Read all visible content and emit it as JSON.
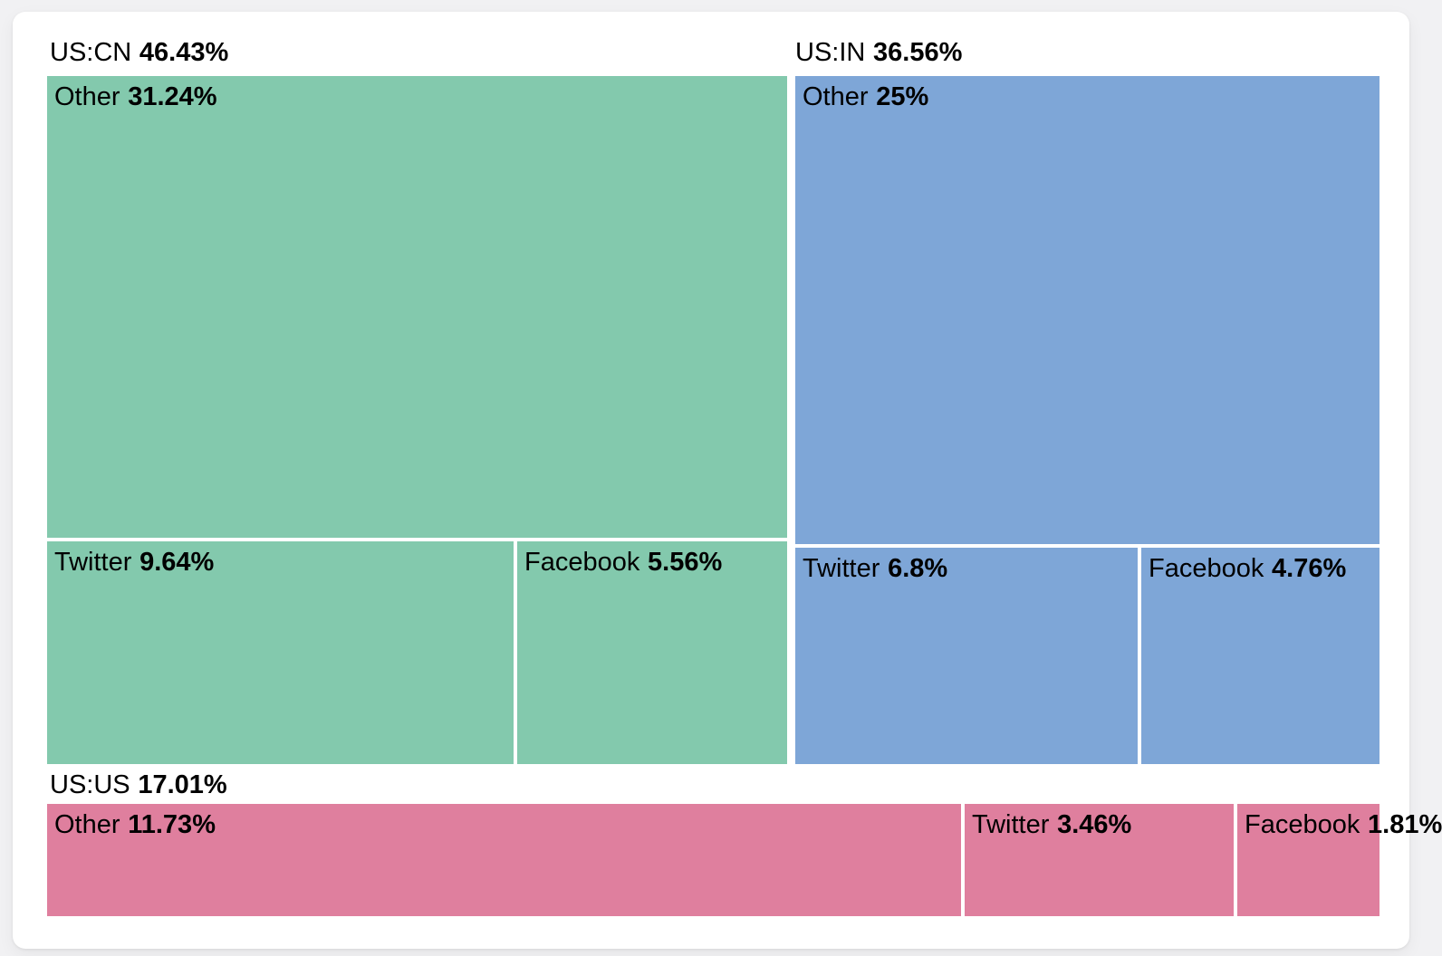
{
  "page": {
    "background_color": "#f1f1f3",
    "card_color": "#ffffff"
  },
  "chart_data": {
    "type": "treemap",
    "title": "",
    "unit": "%",
    "legend": "none",
    "grid": false,
    "label_format": "name + bold percentage",
    "groups": [
      {
        "name": "US:CN",
        "value": 46.43,
        "value_label": "46.43%",
        "color": "#83c9ad",
        "children": [
          {
            "name": "Other",
            "value": 31.24,
            "value_label": "31.24%"
          },
          {
            "name": "Twitter",
            "value": 9.64,
            "value_label": "9.64%"
          },
          {
            "name": "Facebook",
            "value": 5.56,
            "value_label": "5.56%"
          }
        ]
      },
      {
        "name": "US:IN",
        "value": 36.56,
        "value_label": "36.56%",
        "color": "#7ea6d7",
        "children": [
          {
            "name": "Other",
            "value": 25,
            "value_label": "25%"
          },
          {
            "name": "Twitter",
            "value": 6.8,
            "value_label": "6.8%"
          },
          {
            "name": "Facebook",
            "value": 4.76,
            "value_label": "4.76%"
          }
        ]
      },
      {
        "name": "US:US",
        "value": 17.01,
        "value_label": "17.01%",
        "color": "#df7f9e",
        "children": [
          {
            "name": "Other",
            "value": 11.73,
            "value_label": "11.73%"
          },
          {
            "name": "Twitter",
            "value": 3.46,
            "value_label": "3.46%"
          },
          {
            "name": "Facebook",
            "value": 1.81,
            "value_label": "1.81%"
          }
        ]
      }
    ]
  }
}
